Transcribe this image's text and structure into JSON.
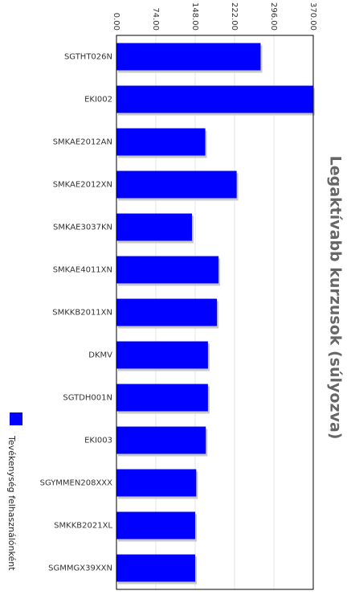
{
  "chart_data": {
    "type": "bar",
    "orientation": "horizontal",
    "title": "Legaktívabb kurzusok (súlyozva)",
    "xlabel": "",
    "ylabel": "",
    "xlim": [
      0,
      370
    ],
    "tick_values": [
      0,
      74,
      148,
      222,
      296,
      370
    ],
    "tick_labels": [
      "0.00",
      "74.00",
      "148.00",
      "222.00",
      "296.00",
      "370.00"
    ],
    "grid": true,
    "legend_position": "left",
    "categories": [
      "SGTHT026N",
      "EKI002",
      "SMKAE2012AN",
      "SMKAE2012XN",
      "SMKAE3037KN",
      "SMKAE4011XN",
      "SMKKB2011XN",
      "DKMV",
      "SGTDH001N",
      "EKI003",
      "SGYMMEN208XXX",
      "SMKKB2021XL",
      "SGMMGX39XXN"
    ],
    "series": [
      {
        "name": "Tevékenység felhasználónként",
        "color": "#0000ff",
        "values": [
          271,
          370,
          167,
          226,
          142,
          192,
          189,
          172,
          172,
          168,
          150,
          148,
          148
        ]
      }
    ]
  }
}
